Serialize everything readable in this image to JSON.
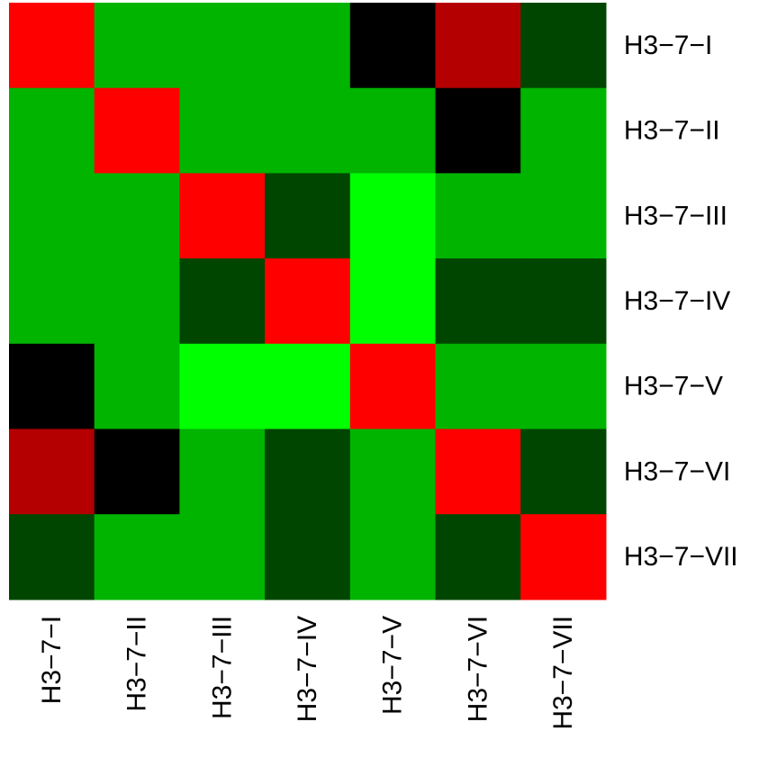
{
  "chart_data": {
    "type": "heatmap",
    "title": "",
    "xlabel": "",
    "ylabel": "",
    "rows": [
      "H3−7−I",
      "H3−7−II",
      "H3−7−III",
      "H3−7−IV",
      "H3−7−V",
      "H3−7−VI",
      "H3−7−VII"
    ],
    "columns": [
      "H3−7−I",
      "H3−7−II",
      "H3−7−III",
      "H3−7−IV",
      "H3−7−V",
      "H3−7−VI",
      "H3−7−VII"
    ],
    "levels": [
      {
        "level": 0,
        "color": "#00FF00"
      },
      {
        "level": 1,
        "color": "#00B400"
      },
      {
        "level": 2,
        "color": "#004600"
      },
      {
        "level": 3,
        "color": "#000000"
      },
      {
        "level": 4,
        "color": "#B40000"
      },
      {
        "level": 5,
        "color": "#FF0000"
      }
    ],
    "values": [
      [
        5,
        1,
        1,
        1,
        3,
        4,
        2
      ],
      [
        1,
        5,
        1,
        1,
        1,
        3,
        1
      ],
      [
        1,
        1,
        5,
        2,
        0,
        1,
        1
      ],
      [
        1,
        1,
        2,
        5,
        0,
        2,
        2
      ],
      [
        3,
        1,
        0,
        0,
        5,
        1,
        1
      ],
      [
        4,
        3,
        1,
        2,
        1,
        5,
        2
      ],
      [
        2,
        1,
        1,
        2,
        1,
        2,
        5
      ]
    ],
    "row_labels_position": "right",
    "column_labels_position": "bottom",
    "legend": "none",
    "grid": false
  }
}
